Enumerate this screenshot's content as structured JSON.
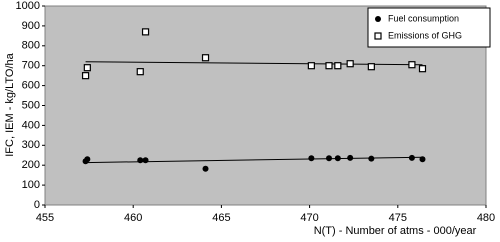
{
  "chart_data": {
    "type": "scatter",
    "x_label": "N(T) - Number of atms - 000/year",
    "y_label": "IFC, IEM - kg/LTO/ha",
    "xlim": [
      455,
      480
    ],
    "xticks": [
      455,
      460,
      465,
      470,
      475,
      480
    ],
    "ylim": [
      0,
      1000
    ],
    "yticks": [
      0,
      100,
      200,
      300,
      400,
      500,
      600,
      700,
      800,
      900,
      1000
    ],
    "grid": false,
    "legend": "top-right",
    "x": [
      457.3,
      457.4,
      460.4,
      460.7,
      464.1,
      470.1,
      471.1,
      471.6,
      472.3,
      473.5,
      475.8,
      476.4
    ],
    "series": [
      {
        "name": "Fuel consumption",
        "color": "#000000",
        "marker": "circle",
        "values": [
          220,
          230,
          225,
          225,
          182,
          235,
          235,
          235,
          237,
          233,
          237,
          230
        ],
        "trend_x": [
          457.3,
          476.4
        ],
        "trend_values": [
          213,
          240
        ]
      },
      {
        "name": "Emissions of GHG",
        "color": "#000000",
        "marker": "square",
        "values": [
          650,
          690,
          670,
          870,
          740,
          700,
          700,
          700,
          710,
          695,
          705,
          685
        ],
        "trend_x": [
          457.3,
          476.4
        ],
        "trend_values": [
          720,
          705
        ]
      }
    ]
  }
}
